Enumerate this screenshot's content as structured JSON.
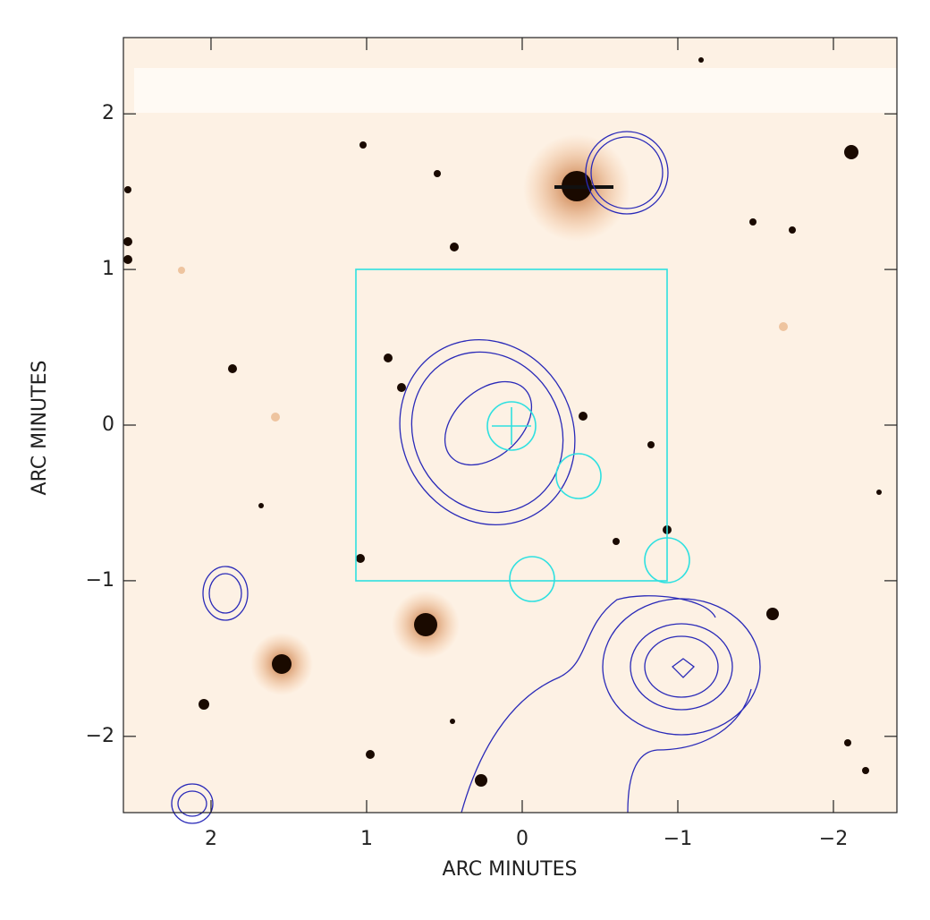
{
  "chart_data": {
    "type": "image",
    "xlabel": "ARC MINUTES",
    "ylabel": "ARC MINUTES",
    "xlim": [
      2.563,
      -2.408
    ],
    "ylim": [
      -2.49,
      2.49
    ],
    "xticks": [
      2,
      1,
      0,
      {
        "value": -1,
        "label": "−1"
      },
      {
        "value": -2,
        "label": "−2"
      }
    ],
    "yticks": [
      {
        "value": -2,
        "label": "−2"
      },
      {
        "value": -1,
        "label": "−1"
      },
      0,
      1,
      2
    ]
  }
}
